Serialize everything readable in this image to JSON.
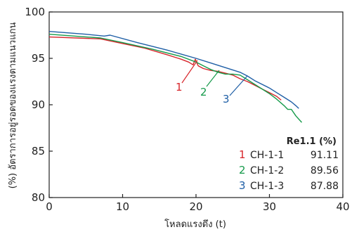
{
  "chart_data": {
    "type": "line",
    "xlabel": "โหลดแรงดึง (t)",
    "ylabel": "(%) อัตราการอยู่รอดของแรงตามแนวแกน",
    "xlim": [
      0,
      40
    ],
    "ylim": [
      80,
      100
    ],
    "xticks": [
      0,
      10,
      20,
      30,
      40
    ],
    "yticks": [
      80,
      85,
      90,
      95,
      100
    ],
    "grid": false,
    "series": [
      {
        "name": "CH-1-1",
        "color": "#d7262b",
        "callout": "1",
        "points": [
          [
            0,
            97.3
          ],
          [
            7,
            97.1
          ],
          [
            10,
            96.6
          ],
          [
            13,
            96.1
          ],
          [
            16,
            95.4
          ],
          [
            18,
            94.9
          ],
          [
            19,
            94.6
          ],
          [
            19.6,
            94.3
          ],
          [
            19.9,
            94.9
          ],
          [
            20.3,
            94.2
          ],
          [
            21,
            93.9
          ],
          [
            22,
            93.7
          ],
          [
            23,
            93.6
          ],
          [
            24,
            93.4
          ],
          [
            25,
            93.2
          ],
          [
            26,
            92.8
          ],
          [
            27,
            92.5
          ],
          [
            28,
            92.1
          ],
          [
            29,
            91.7
          ],
          [
            30,
            91.3
          ],
          [
            31,
            90.9
          ],
          [
            31.6,
            90.5
          ]
        ]
      },
      {
        "name": "CH-1-2",
        "color": "#159a4a",
        "callout": "2",
        "points": [
          [
            0,
            97.6
          ],
          [
            7,
            97.2
          ],
          [
            10,
            96.7
          ],
          [
            14,
            96.0
          ],
          [
            18,
            95.2
          ],
          [
            20,
            94.6
          ],
          [
            21,
            94.2
          ],
          [
            22,
            93.8
          ],
          [
            23,
            93.5
          ],
          [
            24,
            93.3
          ],
          [
            25,
            93.3
          ],
          [
            26,
            93.2
          ],
          [
            27,
            92.7
          ],
          [
            28,
            92.2
          ],
          [
            29,
            91.7
          ],
          [
            30,
            91.2
          ],
          [
            31,
            90.6
          ],
          [
            32,
            89.9
          ],
          [
            32.5,
            89.5
          ],
          [
            33,
            89.5
          ],
          [
            33.6,
            88.8
          ],
          [
            34.4,
            88.1
          ]
        ]
      },
      {
        "name": "CH-1-3",
        "color": "#1f5fa6",
        "callout": "3",
        "points": [
          [
            0,
            97.9
          ],
          [
            5,
            97.6
          ],
          [
            7.5,
            97.4
          ],
          [
            8.3,
            97.5
          ],
          [
            12,
            96.7
          ],
          [
            16,
            95.9
          ],
          [
            20,
            95.0
          ],
          [
            22,
            94.5
          ],
          [
            24,
            94.0
          ],
          [
            26,
            93.5
          ],
          [
            27,
            93.1
          ],
          [
            28,
            92.6
          ],
          [
            30,
            91.8
          ],
          [
            31,
            91.3
          ],
          [
            32,
            90.8
          ],
          [
            33,
            90.3
          ],
          [
            33.6,
            89.9
          ],
          [
            34,
            89.6
          ]
        ]
      }
    ],
    "legend": {
      "title": "Re1.1 (%)",
      "placement": "bottom-right",
      "entries": [
        {
          "num": "1",
          "label": "CH-1-1",
          "value": "91.11",
          "color": "#d7262b"
        },
        {
          "num": "2",
          "label": "CH-1-2",
          "value": "89.56",
          "color": "#159a4a"
        },
        {
          "num": "3",
          "label": "CH-1-3",
          "value": "87.88",
          "color": "#1f5fa6"
        }
      ]
    }
  }
}
